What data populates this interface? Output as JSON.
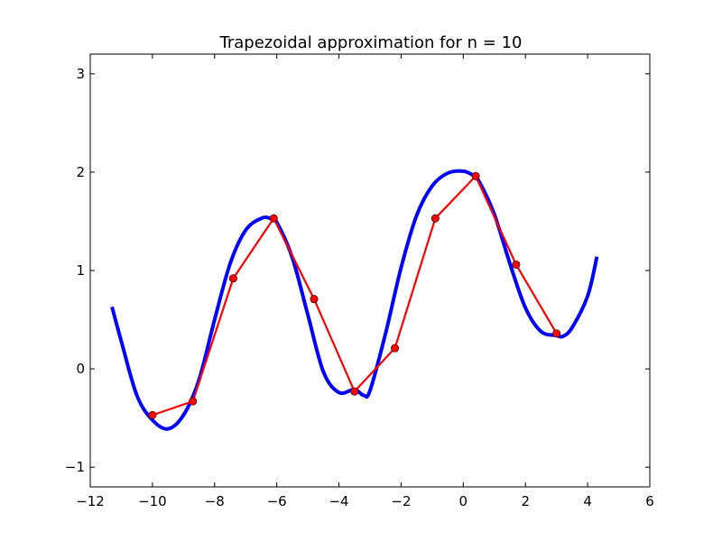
{
  "chart_data": {
    "type": "line",
    "title": "Trapezoidal approximation for n = 10",
    "xlabel": "",
    "ylabel": "",
    "xlim": [
      -12,
      6
    ],
    "ylim": [
      -1.2,
      3.2
    ],
    "x_ticks": [
      -12,
      -10,
      -8,
      -6,
      -4,
      -2,
      0,
      2,
      4,
      6
    ],
    "x_tick_labels": [
      "−12",
      "−10",
      "−8",
      "−6",
      "−4",
      "−2",
      "0",
      "2",
      "4",
      "6"
    ],
    "y_ticks": [
      -1,
      0,
      1,
      2,
      3
    ],
    "y_tick_labels": [
      "−1",
      "0",
      "1",
      "2",
      "3"
    ],
    "grid": false,
    "legend": "none",
    "series": [
      {
        "style": "thick-curve",
        "color": "#0000ff",
        "x": [
          -11.3,
          -11.0,
          -10.5,
          -10.0,
          -9.5,
          -9.0,
          -8.5,
          -8.0,
          -7.5,
          -7.0,
          -6.5,
          -6.2,
          -6.0,
          -5.5,
          -5.0,
          -4.5,
          -4.0,
          -3.5,
          -3.2,
          -3.0,
          -2.5,
          -2.0,
          -1.5,
          -1.0,
          -0.5,
          0.0,
          0.3,
          0.5,
          1.0,
          1.5,
          2.0,
          2.5,
          3.0,
          3.2,
          3.5,
          4.0,
          4.3
        ],
        "y": [
          0.63,
          0.28,
          -0.27,
          -0.52,
          -0.61,
          -0.47,
          -0.11,
          0.5,
          1.07,
          1.41,
          1.53,
          1.53,
          1.49,
          1.13,
          0.55,
          -0.03,
          -0.24,
          -0.21,
          -0.27,
          -0.22,
          0.36,
          1.03,
          1.56,
          1.86,
          1.99,
          2.01,
          1.97,
          1.91,
          1.57,
          1.07,
          0.62,
          0.38,
          0.34,
          0.33,
          0.42,
          0.74,
          1.14
        ]
      },
      {
        "style": "trapezoid-line-with-markers",
        "color": "#ff0000",
        "marker_color": "#ff0000",
        "x": [
          -10.0,
          -8.7,
          -7.4,
          -6.1,
          -4.8,
          -3.5,
          -2.2,
          -0.9,
          0.4,
          1.7,
          3.0
        ],
        "y": [
          -0.47,
          -0.33,
          0.92,
          1.53,
          0.71,
          -0.23,
          0.21,
          1.53,
          1.96,
          1.06,
          0.36
        ]
      }
    ]
  }
}
